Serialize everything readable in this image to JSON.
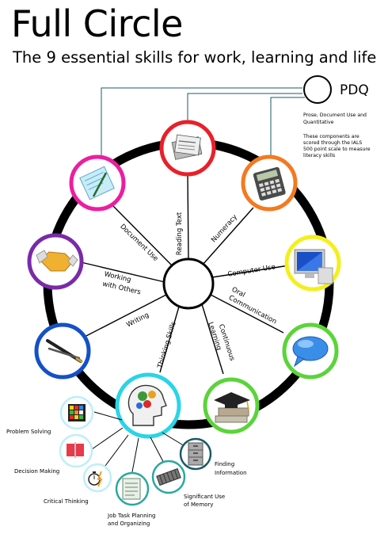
{
  "header": {
    "title": "Full Circle",
    "subtitle": "The 9 essential skills for work, learning and life"
  },
  "pdq": {
    "label": "PDQ",
    "line1": "Prose, Document Use and",
    "line2": "Quantitative",
    "note": [
      "These components are",
      "scored through the IALS",
      "500 point scale to measure",
      "literacy skills"
    ]
  },
  "skills": {
    "reading_text": "Reading Text",
    "numeracy": "Numeracy",
    "computer_use": "Computer Use",
    "oral_line1": "Oral",
    "oral_line2": "Communication",
    "continuous_line1": "Continuous",
    "continuous_line2": "Learning",
    "thinking_skills": "Thinking Skills",
    "writing": "Writing",
    "working_line1": "Working",
    "working_line2": "with Others",
    "document_use": "Document Use"
  },
  "sub_skills": {
    "problem_solving": "Problem Solving",
    "decision_making": "Decision Making",
    "critical_thinking": "Critical Thinking",
    "job_task_line1": "Job Task Planning",
    "job_task_line2": "and Organizing",
    "memory_line1": "Significant Use",
    "memory_line2": "of Memory",
    "finding_line1": "Finding",
    "finding_line2": "Information"
  },
  "colors": {
    "reading_text": "#e8202a",
    "numeracy": "#f47920",
    "computer_use": "#f4ef1a",
    "oral_communication": "#5bd43a",
    "continuous_learning": "#5bd43a",
    "thinking_skills": "#2ad4e8",
    "writing": "#1450c8",
    "working_with_others": "#7a2aa8",
    "document_use": "#ec1ea0",
    "pdq_lines": "#1a5a6a",
    "ring": "#000000"
  },
  "icons": {
    "reading_text": "newspaper-icon",
    "numeracy": "calculator-icon",
    "computer_use": "computer-monitor-icon",
    "oral_communication": "speech-bubble-icon",
    "continuous_learning": "graduation-cap-icon",
    "thinking_skills": "head-gears-icon",
    "writing": "pen-icon",
    "working_with_others": "handshake-icon",
    "document_use": "clipboard-icon"
  }
}
